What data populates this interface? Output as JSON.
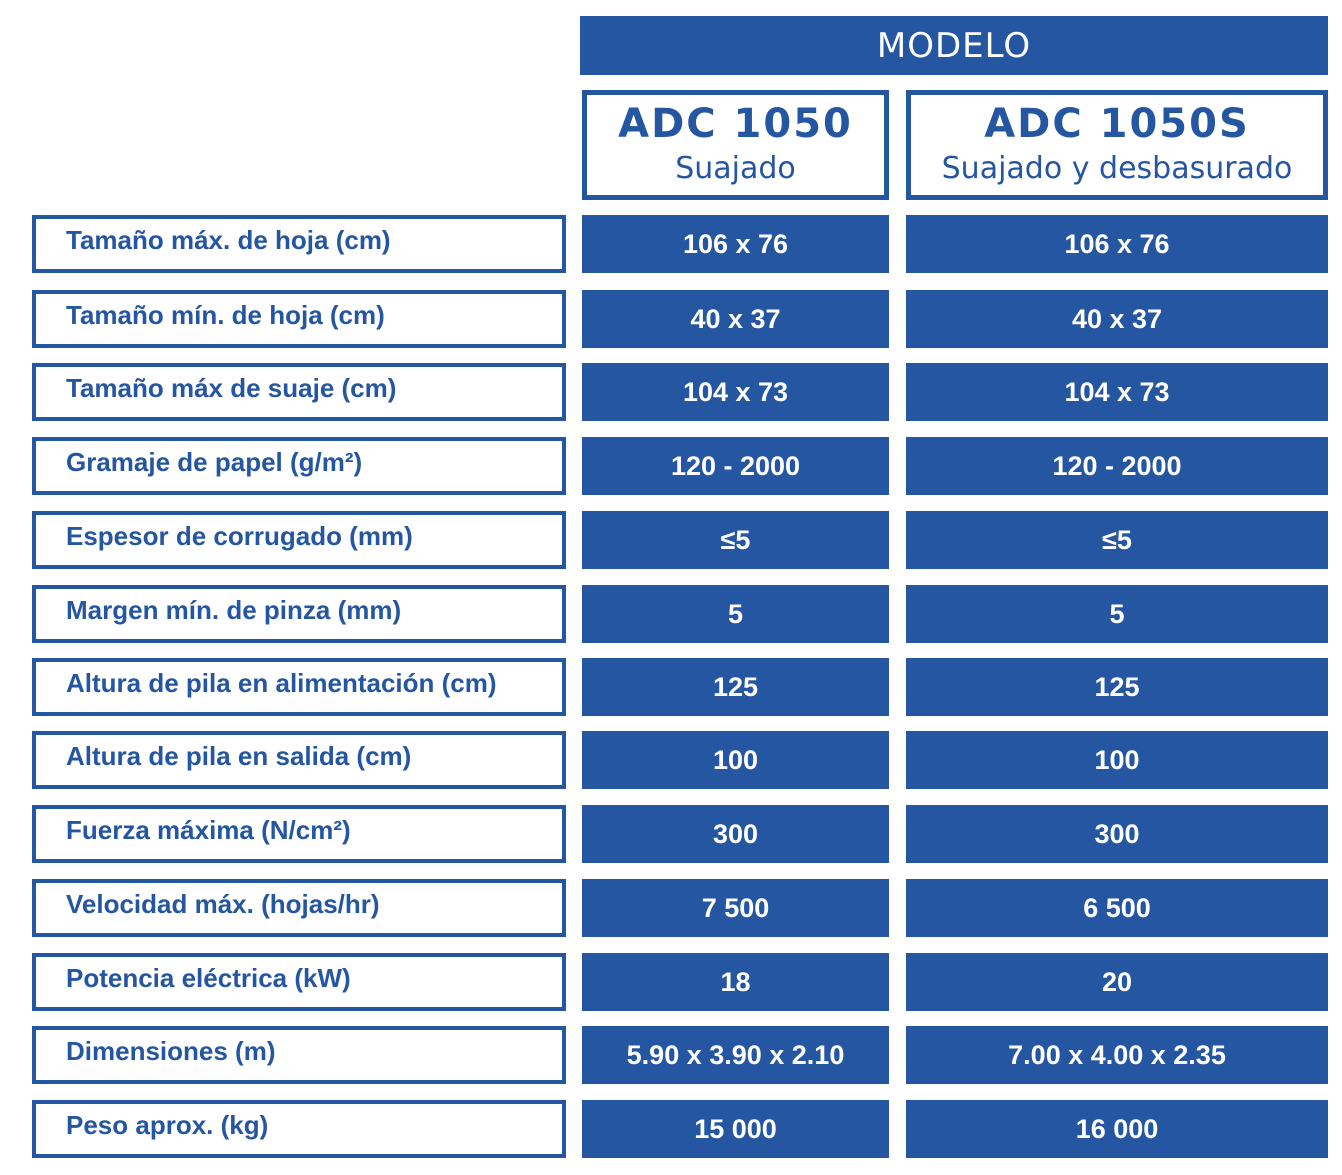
{
  "header": {
    "title": "MODELO"
  },
  "models": [
    {
      "name": "ADC 1050",
      "subtitle": "Suajado"
    },
    {
      "name": "ADC 1050S",
      "subtitle": "Suajado y desbasurado"
    }
  ],
  "rows": [
    {
      "label": "Tamaño máx. de hoja (cm)",
      "v1": "106 x 76",
      "v2": "106 x 76"
    },
    {
      "label": "Tamaño mín. de hoja (cm)",
      "v1": "40 x 37",
      "v2": "40 x 37"
    },
    {
      "label": "Tamaño máx de suaje (cm)",
      "v1": "104 x 73",
      "v2": "104 x 73"
    },
    {
      "label": "Gramaje de papel (g/m²)",
      "v1": "120 - 2000",
      "v2": "120 - 2000"
    },
    {
      "label": "Espesor de corrugado (mm)",
      "v1": "≤5",
      "v2": "≤5"
    },
    {
      "label": "Margen mín. de pinza (mm)",
      "v1": "5",
      "v2": "5"
    },
    {
      "label": "Altura de pila en alimentación (cm)",
      "v1": "125",
      "v2": "125"
    },
    {
      "label": "Altura de pila en salida (cm)",
      "v1": "100",
      "v2": "100"
    },
    {
      "label": "Fuerza máxima (N/cm²)",
      "v1": "300",
      "v2": "300"
    },
    {
      "label": "Velocidad máx. (hojas/hr)",
      "v1": "7 500",
      "v2": "6 500"
    },
    {
      "label": "Potencia eléctrica (kW)",
      "v1": "18",
      "v2": "20"
    },
    {
      "label": "Dimensiones (m)",
      "v1": "5.90 x 3.90 x 2.10",
      "v2": "7.00 x 4.00 x 2.35"
    },
    {
      "label": "Peso aprox. (kg)",
      "v1": "15 000",
      "v2": "16 000"
    }
  ],
  "colors": {
    "accent": "#2556a2",
    "background": "#ffffff"
  }
}
